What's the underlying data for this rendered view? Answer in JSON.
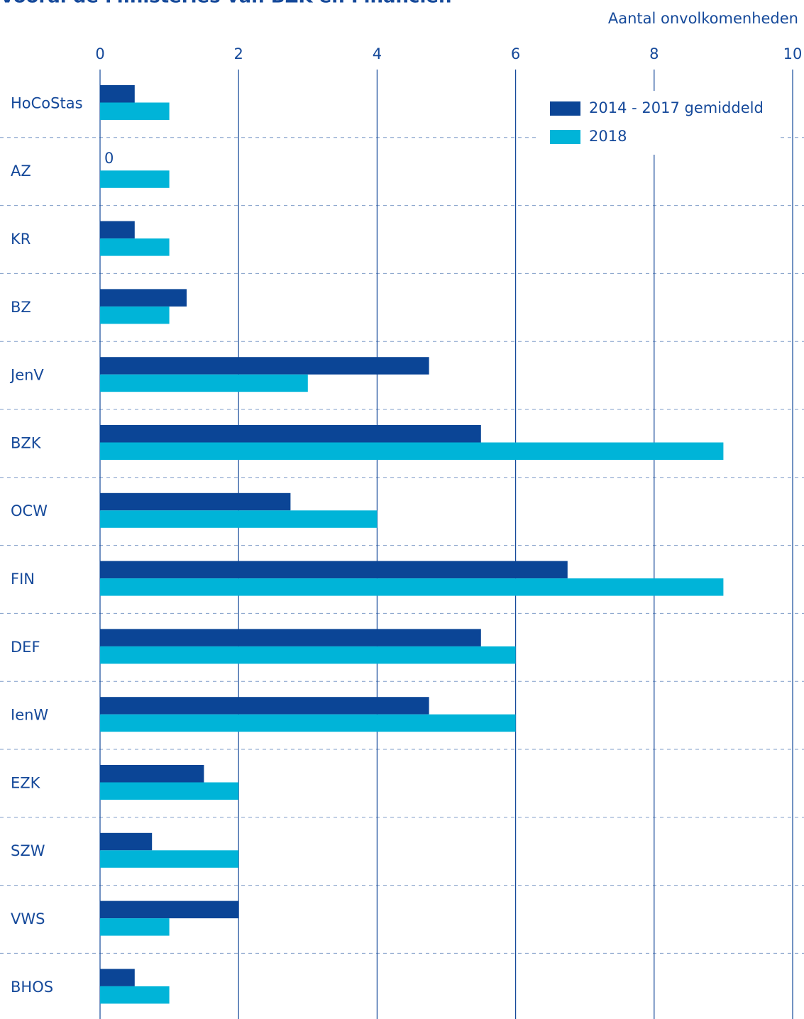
{
  "chart_data": {
    "type": "bar",
    "orientation": "horizontal",
    "title": "Vooral de Ministeries van BZK en Financiën",
    "xlabel": "Aantal onvolkomenheden",
    "categories": [
      "HoCoStas",
      "AZ",
      "KR",
      "BZ",
      "JenV",
      "BZK",
      "OCW",
      "FIN",
      "DEF",
      "IenW",
      "EZK",
      "SZW",
      "VWS",
      "BHOS"
    ],
    "series": [
      {
        "name": "2014 - 2017 gemiddeld",
        "color": "#0b4596",
        "values": [
          0.5,
          0,
          0.5,
          1.25,
          4.75,
          5.5,
          2.75,
          6.75,
          5.5,
          4.75,
          1.5,
          0.75,
          2,
          0.5
        ]
      },
      {
        "name": "2018",
        "color": "#00b4d8",
        "values": [
          1,
          1,
          1,
          1,
          3,
          9,
          4,
          9,
          6,
          6,
          2,
          2,
          1,
          1
        ]
      }
    ],
    "xlim": [
      0,
      10
    ],
    "xticks": [
      0,
      2,
      4,
      6,
      8,
      10
    ],
    "grid": true,
    "legend": "upper right"
  }
}
